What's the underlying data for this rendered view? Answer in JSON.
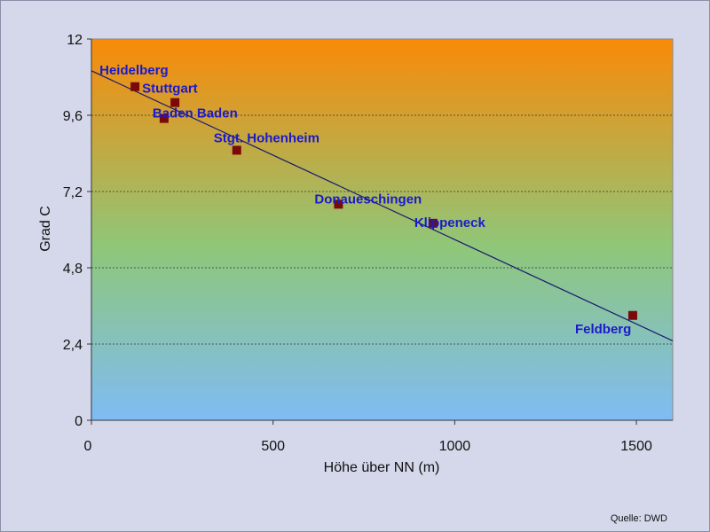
{
  "colors": {
    "background": "#d4d8ea",
    "plot_top": "#f98a08",
    "plot_mid": "#8ec77a",
    "plot_bottom": "#7fbcf5",
    "marker": "#7a0a0a",
    "trendline": "#1a1a6e",
    "label": "#1a1acc"
  },
  "chart_data": {
    "type": "scatter",
    "xlabel": "Höhe über NN (m)",
    "ylabel": "Grad C",
    "source": "Quelle: DWD",
    "xlim": [
      0,
      1600
    ],
    "ylim": [
      0,
      12
    ],
    "x_ticks": [
      0,
      500,
      1000,
      1500
    ],
    "x_tick_labels": [
      "0",
      "500",
      "1000",
      "1500"
    ],
    "y_ticks": [
      0,
      2.4,
      4.8,
      7.2,
      9.6,
      12
    ],
    "y_tick_labels": [
      "0",
      "2,4",
      "4,8",
      "7,2",
      "9,6",
      "12"
    ],
    "grid": "horizontal dashed",
    "points": [
      {
        "label": "Heidelberg",
        "x": 120,
        "y": 10.5
      },
      {
        "label": "Stuttgart",
        "x": 230,
        "y": 10.0
      },
      {
        "label": "Baden Baden",
        "x": 200,
        "y": 9.5
      },
      {
        "label": "Stgt. Hohenheim",
        "x": 400,
        "y": 8.5
      },
      {
        "label": "Donaueschingen",
        "x": 680,
        "y": 6.8
      },
      {
        "label": "Klippeneck",
        "x": 940,
        "y": 6.2
      },
      {
        "label": "Feldberg",
        "x": 1490,
        "y": 3.3
      }
    ],
    "trendline": {
      "x": [
        0,
        1600
      ],
      "y": [
        11.0,
        2.5
      ]
    }
  }
}
